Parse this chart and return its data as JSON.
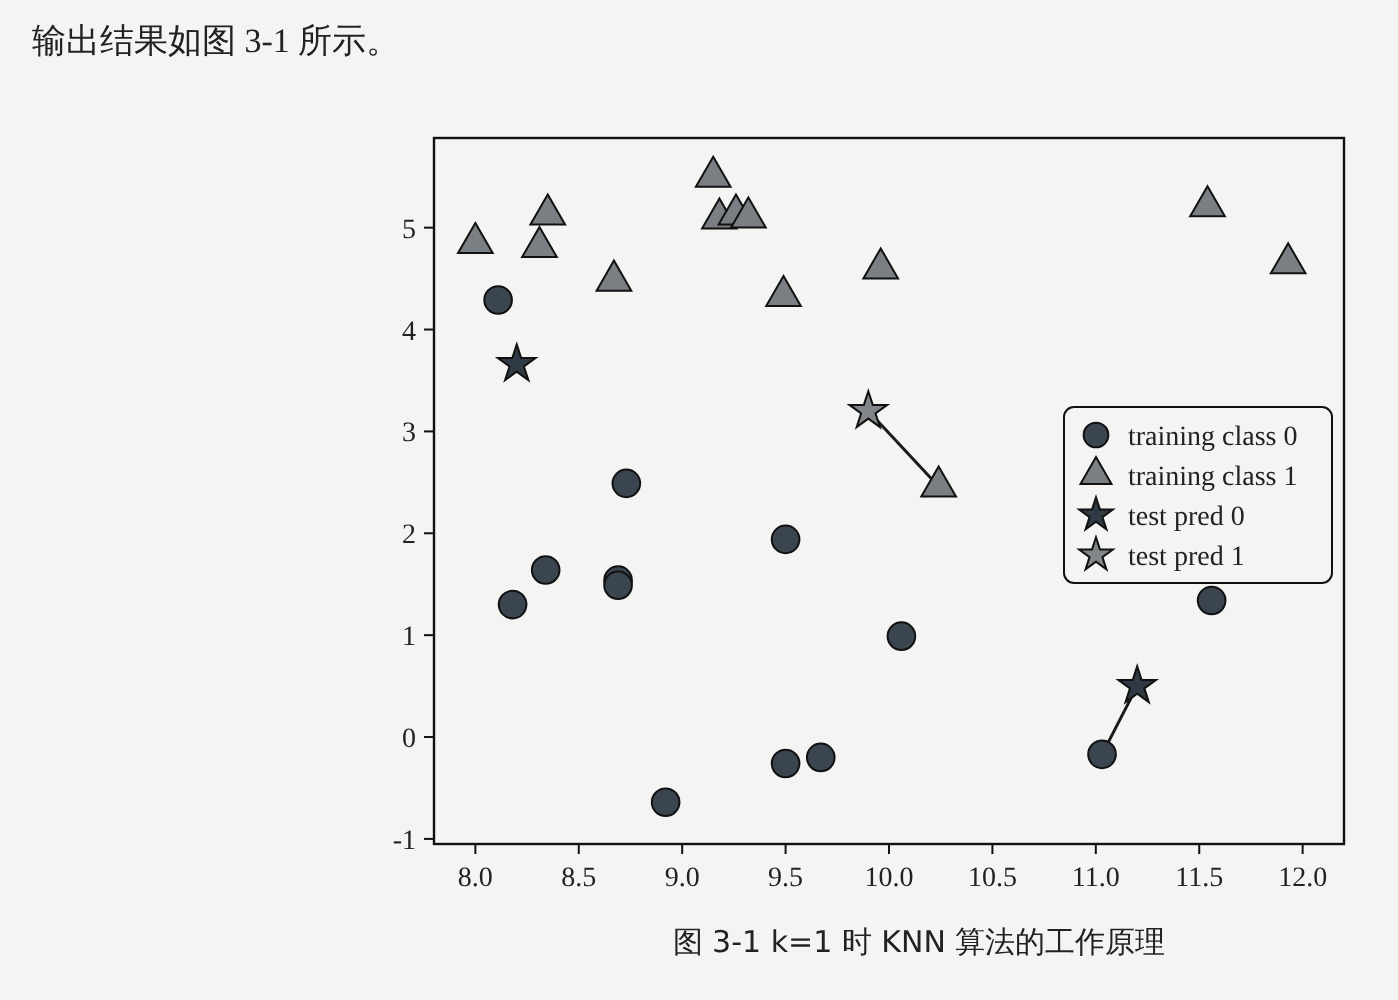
{
  "chart_data": {
    "type": "scatter",
    "title": "图 3-1  k=1 时 KNN 算法的工作原理",
    "annotations": [
      "输出结果如图 3-1 所示。"
    ],
    "xlim": [
      7.8,
      12.2
    ],
    "ylim": [
      -1.05,
      5.88
    ],
    "xticks": [
      {
        "value": 8,
        "label": "8.0"
      },
      {
        "value": 8.5,
        "label": "8.5"
      },
      {
        "value": 9,
        "label": "9.0"
      },
      {
        "value": 9.5,
        "label": "9.5"
      },
      {
        "value": 10,
        "label": "10.0"
      },
      {
        "value": 10.5,
        "label": "10.5"
      },
      {
        "value": 11,
        "label": "11.0"
      },
      {
        "value": 11.5,
        "label": "11.5"
      },
      {
        "value": 12,
        "label": "12.0"
      }
    ],
    "yticks": [
      -1,
      0,
      1,
      2,
      3,
      4,
      5
    ],
    "grid": false,
    "legend": "right",
    "series": [
      {
        "type": "line",
        "color": "#1a1a1a",
        "marker": "none",
        "x": [
          9.9,
          10.24
        ],
        "values": [
          3.2,
          2.46
        ]
      },
      {
        "type": "line",
        "color": "#1a1a1a",
        "marker": "none",
        "x": [
          11.2,
          11.03
        ],
        "values": [
          0.5,
          -0.17
        ]
      },
      {
        "name": "training class 0",
        "marker": "circle",
        "color": "#3a4550",
        "x": [
          11.03,
          8.69,
          8.11,
          9.67,
          8.69,
          8.92,
          8.18,
          8.73,
          10.06,
          9.5,
          8.34,
          9.5,
          11.56
        ],
        "values": [
          -0.17,
          1.54,
          4.29,
          -0.2,
          1.49,
          -0.64,
          1.3,
          2.49,
          0.99,
          -0.26,
          1.64,
          1.94,
          1.34
        ]
      },
      {
        "name": "training class 1",
        "marker": "triangle",
        "color": "#7a7f84",
        "x": [
          9.96,
          11.54,
          8.31,
          11.93,
          8.35,
          8.67,
          9.18,
          10.24,
          9.49,
          9.26,
          8.0,
          9.32,
          9.15
        ],
        "values": [
          4.6,
          5.21,
          4.81,
          4.65,
          5.13,
          4.48,
          5.09,
          2.46,
          4.33,
          5.13,
          4.85,
          5.1,
          5.5
        ]
      },
      {
        "name": "test pred 0",
        "marker": "star",
        "color": "#2f3a45",
        "x": [
          8.2,
          11.2
        ],
        "values": [
          3.66,
          0.5
        ]
      },
      {
        "name": "test pred 1",
        "marker": "star",
        "color": "#80868a",
        "x": [
          9.9
        ],
        "values": [
          3.2
        ]
      }
    ]
  }
}
